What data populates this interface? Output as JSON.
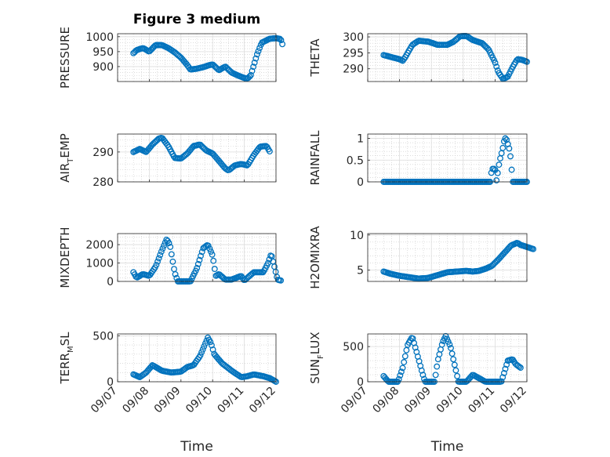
{
  "figure": {
    "title": "Figure 3 medium",
    "marker_color": "#0072BD",
    "xlabel": "Time"
  },
  "chart_data": [
    {
      "id": "pressure",
      "type": "scatter",
      "title": "Figure 3 medium",
      "ylabel": "PRESSURE",
      "ylim": [
        850,
        1010
      ],
      "yticks": [
        900,
        950,
        1000
      ],
      "ytick_labels": [
        "900",
        "950",
        "1000"
      ],
      "x_tick_labels": [],
      "knots": [
        [
          0.5,
          945
        ],
        [
          0.6,
          955
        ],
        [
          0.8,
          962
        ],
        [
          1.0,
          950
        ],
        [
          1.2,
          972
        ],
        [
          1.4,
          972
        ],
        [
          1.6,
          962
        ],
        [
          1.8,
          948
        ],
        [
          2.0,
          930
        ],
        [
          2.2,
          905
        ],
        [
          2.3,
          890
        ],
        [
          2.5,
          893
        ],
        [
          2.7,
          898
        ],
        [
          2.9,
          905
        ],
        [
          3.0,
          907
        ],
        [
          3.2,
          888
        ],
        [
          3.4,
          900
        ],
        [
          3.6,
          880
        ],
        [
          3.8,
          870
        ],
        [
          4.0,
          862
        ],
        [
          4.1,
          860
        ],
        [
          4.2,
          870
        ],
        [
          4.4,
          940
        ],
        [
          4.55,
          980
        ],
        [
          4.8,
          993
        ],
        [
          5.0,
          995
        ],
        [
          5.15,
          992
        ],
        [
          5.2,
          975
        ]
      ]
    },
    {
      "id": "theta",
      "type": "scatter",
      "ylabel": "THETA",
      "ylim": [
        286,
        301
      ],
      "yticks": [
        290,
        295,
        300
      ],
      "ytick_labels": [
        "290",
        "295",
        "300"
      ],
      "x_tick_labels": [],
      "knots": [
        [
          0.5,
          294.3
        ],
        [
          0.8,
          293.5
        ],
        [
          1.0,
          293
        ],
        [
          1.1,
          292.5
        ],
        [
          1.2,
          294
        ],
        [
          1.4,
          297.5
        ],
        [
          1.6,
          298.8
        ],
        [
          1.9,
          298.5
        ],
        [
          2.2,
          297.5
        ],
        [
          2.5,
          297.5
        ],
        [
          2.7,
          298.5
        ],
        [
          2.9,
          300.2
        ],
        [
          3.1,
          300.3
        ],
        [
          3.3,
          299
        ],
        [
          3.6,
          298
        ],
        [
          3.8,
          296
        ],
        [
          4.0,
          292
        ],
        [
          4.1,
          289
        ],
        [
          4.25,
          286.8
        ],
        [
          4.4,
          287.5
        ],
        [
          4.55,
          290.5
        ],
        [
          4.7,
          293
        ],
        [
          4.85,
          292.8
        ],
        [
          5.0,
          292.2
        ]
      ]
    },
    {
      "id": "air_temp",
      "type": "scatter",
      "ylabel": "AIR",
      "ylabel_sub": "T",
      "ylabel_suffix": "EMP",
      "ylim": [
        280,
        296
      ],
      "yticks": [
        280,
        290
      ],
      "ytick_labels": [
        "280",
        "290"
      ],
      "x_tick_labels": [],
      "knots": [
        [
          0.5,
          290
        ],
        [
          0.7,
          291
        ],
        [
          0.9,
          290
        ],
        [
          1.1,
          292.5
        ],
        [
          1.3,
          294.5
        ],
        [
          1.4,
          294.8
        ],
        [
          1.6,
          292
        ],
        [
          1.8,
          288
        ],
        [
          2.0,
          287.8
        ],
        [
          2.2,
          289.5
        ],
        [
          2.4,
          292
        ],
        [
          2.6,
          292.5
        ],
        [
          2.8,
          290.5
        ],
        [
          3.0,
          289.5
        ],
        [
          3.2,
          287
        ],
        [
          3.4,
          284.5
        ],
        [
          3.5,
          283.8
        ],
        [
          3.7,
          285.5
        ],
        [
          3.9,
          286
        ],
        [
          4.1,
          285.5
        ],
        [
          4.3,
          289
        ],
        [
          4.5,
          291.8
        ],
        [
          4.7,
          292
        ],
        [
          4.8,
          290.2
        ]
      ]
    },
    {
      "id": "rainfall",
      "type": "scatter",
      "ylabel": "RAINFALL",
      "ylim": [
        0,
        1.1
      ],
      "yticks": [
        0,
        0.5,
        1
      ],
      "ytick_labels": [
        "0",
        "0.5",
        "1"
      ],
      "x_tick_labels": [],
      "knots": [
        [
          0.5,
          0
        ],
        [
          3.85,
          0
        ],
        [
          3.9,
          0.3
        ],
        [
          4.0,
          0.3
        ],
        [
          4.05,
          0
        ],
        [
          4.1,
          0.3
        ],
        [
          4.15,
          0.5
        ],
        [
          4.2,
          0.65
        ],
        [
          4.25,
          0.8
        ],
        [
          4.3,
          1
        ],
        [
          4.35,
          1
        ],
        [
          4.45,
          0.75
        ],
        [
          4.5,
          0.5
        ],
        [
          4.55,
          0
        ],
        [
          5.0,
          0
        ]
      ]
    },
    {
      "id": "mixdepth",
      "type": "scatter",
      "ylabel": "MIXDEPTH",
      "ylim": [
        0,
        2600
      ],
      "yticks": [
        0,
        1000,
        2000
      ],
      "ytick_labels": [
        "0",
        "1000",
        "2000"
      ],
      "x_tick_labels": [],
      "knots": [
        [
          0.5,
          500
        ],
        [
          0.6,
          200
        ],
        [
          0.8,
          400
        ],
        [
          1.0,
          300
        ],
        [
          1.2,
          800
        ],
        [
          1.4,
          1700
        ],
        [
          1.55,
          2300
        ],
        [
          1.65,
          2000
        ],
        [
          1.8,
          500
        ],
        [
          1.9,
          0
        ],
        [
          2.3,
          0
        ],
        [
          2.5,
          700
        ],
        [
          2.7,
          1800
        ],
        [
          2.85,
          2000
        ],
        [
          3.0,
          1400
        ],
        [
          3.1,
          300
        ],
        [
          3.2,
          400
        ],
        [
          3.4,
          100
        ],
        [
          3.6,
          100
        ],
        [
          3.9,
          300
        ],
        [
          4.0,
          50
        ],
        [
          4.3,
          500
        ],
        [
          4.6,
          500
        ],
        [
          4.75,
          1000
        ],
        [
          4.85,
          1500
        ],
        [
          4.95,
          800
        ],
        [
          5.05,
          100
        ],
        [
          5.15,
          50
        ]
      ]
    },
    {
      "id": "h2omixra",
      "type": "scatter",
      "ylabel": "H2OMIXRA",
      "ylim": [
        3.4,
        10.2
      ],
      "yticks": [
        5,
        10
      ],
      "ytick_labels": [
        "5",
        "10"
      ],
      "x_tick_labels": [],
      "knots": [
        [
          0.5,
          4.8
        ],
        [
          0.7,
          4.5
        ],
        [
          1.0,
          4.2
        ],
        [
          1.3,
          4
        ],
        [
          1.6,
          3.8
        ],
        [
          1.9,
          3.9
        ],
        [
          2.2,
          4.3
        ],
        [
          2.5,
          4.7
        ],
        [
          2.8,
          4.8
        ],
        [
          3.1,
          4.9
        ],
        [
          3.3,
          4.8
        ],
        [
          3.5,
          4.9
        ],
        [
          3.7,
          5.2
        ],
        [
          3.9,
          5.6
        ],
        [
          4.1,
          6.5
        ],
        [
          4.3,
          7.5
        ],
        [
          4.5,
          8.5
        ],
        [
          4.7,
          8.9
        ],
        [
          4.8,
          8.6
        ],
        [
          5.0,
          8.3
        ],
        [
          5.2,
          8
        ]
      ]
    },
    {
      "id": "terr_msl",
      "type": "scatter",
      "ylabel": "TERR",
      "ylabel_sub": "M",
      "ylabel_suffix": "SL",
      "ylim": [
        0,
        520
      ],
      "yticks": [
        0,
        500
      ],
      "ytick_labels": [
        "0",
        "500"
      ],
      "x_tick_labels": [
        "09/07",
        "09/08",
        "09/09",
        "09/10",
        "09/11",
        "09/12"
      ],
      "knots": [
        [
          0.5,
          80
        ],
        [
          0.7,
          50
        ],
        [
          0.9,
          100
        ],
        [
          1.1,
          180
        ],
        [
          1.4,
          120
        ],
        [
          1.7,
          100
        ],
        [
          2.0,
          110
        ],
        [
          2.2,
          160
        ],
        [
          2.4,
          180
        ],
        [
          2.6,
          280
        ],
        [
          2.75,
          400
        ],
        [
          2.85,
          480
        ],
        [
          2.95,
          420
        ],
        [
          3.05,
          300
        ],
        [
          3.3,
          200
        ],
        [
          3.6,
          120
        ],
        [
          3.9,
          50
        ],
        [
          4.1,
          60
        ],
        [
          4.3,
          80
        ],
        [
          4.6,
          60
        ],
        [
          4.8,
          40
        ],
        [
          4.9,
          20
        ],
        [
          5.0,
          0
        ]
      ]
    },
    {
      "id": "sun_flux",
      "type": "scatter",
      "ylabel": "SUN",
      "ylabel_sub": "F",
      "ylabel_suffix": "LUX",
      "ylim": [
        0,
        680
      ],
      "yticks": [
        0,
        500
      ],
      "ytick_labels": [
        "0",
        "500"
      ],
      "x_tick_labels": [
        "09/07",
        "09/08",
        "09/09",
        "09/10",
        "09/11",
        "09/12"
      ],
      "knots": [
        [
          0.5,
          80
        ],
        [
          0.65,
          0
        ],
        [
          0.95,
          0
        ],
        [
          1.1,
          200
        ],
        [
          1.25,
          520
        ],
        [
          1.4,
          640
        ],
        [
          1.55,
          400
        ],
        [
          1.7,
          150
        ],
        [
          1.8,
          0
        ],
        [
          2.1,
          0
        ],
        [
          2.2,
          300
        ],
        [
          2.35,
          560
        ],
        [
          2.45,
          650
        ],
        [
          2.6,
          500
        ],
        [
          2.75,
          200
        ],
        [
          2.85,
          0
        ],
        [
          3.1,
          0
        ],
        [
          3.3,
          100
        ],
        [
          3.5,
          50
        ],
        [
          3.7,
          0
        ],
        [
          4.2,
          0
        ],
        [
          4.4,
          300
        ],
        [
          4.55,
          320
        ],
        [
          4.65,
          250
        ],
        [
          4.8,
          200
        ]
      ]
    }
  ]
}
